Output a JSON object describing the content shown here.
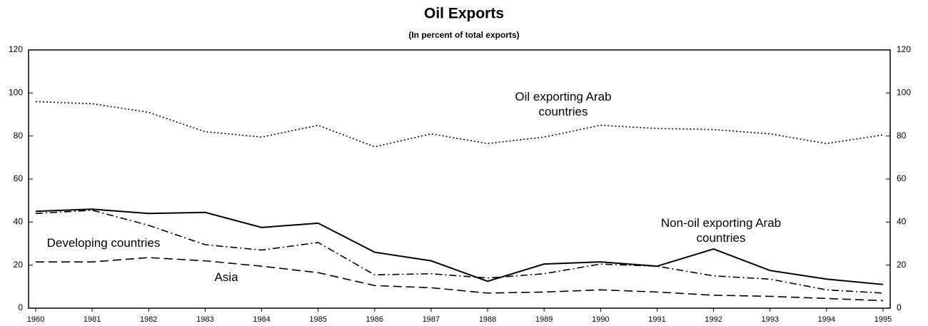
{
  "chart_data": {
    "type": "line",
    "title": "Oil Exports",
    "subtitle": "(In percent of total exports)",
    "categories": [
      "1960",
      "1981",
      "1982",
      "1983",
      "1984",
      "1985",
      "1986",
      "1987",
      "1988",
      "1989",
      "1990",
      "1991",
      "1992",
      "1993",
      "1994",
      "1995"
    ],
    "series": [
      {
        "name": "Oil exporting Arab countries",
        "color": "#000000",
        "linestyle": "dotted",
        "values": [
          96,
          95,
          91,
          82,
          79.5,
          85,
          75,
          81,
          76.5,
          79.5,
          85,
          83.5,
          83,
          81,
          76.5,
          80.5
        ]
      },
      {
        "name": "Non-oil exporting Arab countries",
        "color": "#000000",
        "linestyle": "solid",
        "values": [
          45,
          46,
          44,
          44.5,
          37.5,
          39.5,
          26,
          22,
          12.5,
          20.5,
          21.5,
          19.5,
          27.5,
          17.5,
          13.5,
          11
        ]
      },
      {
        "name": "Developing countries",
        "color": "#000000",
        "linestyle": "dashdot",
        "values": [
          44,
          45.5,
          38.5,
          29.5,
          27,
          30.5,
          15.5,
          16,
          14,
          16,
          20.5,
          19.5,
          15,
          13.5,
          8.5,
          7
        ]
      },
      {
        "name": "Asia",
        "color": "#000000",
        "linestyle": "dashed",
        "values": [
          21.5,
          21.5,
          23.5,
          22,
          19.5,
          16.5,
          10.5,
          9.5,
          7,
          7.5,
          8.5,
          7.5,
          6,
          5.5,
          4.5,
          3.5
        ]
      }
    ],
    "ylim": [
      0,
      120
    ],
    "yticks": [
      0,
      20,
      40,
      60,
      80,
      100,
      120
    ],
    "y2lim": [
      0,
      120
    ],
    "y2ticks": [
      0,
      20,
      40,
      60,
      80,
      100,
      120
    ],
    "grid": false
  }
}
